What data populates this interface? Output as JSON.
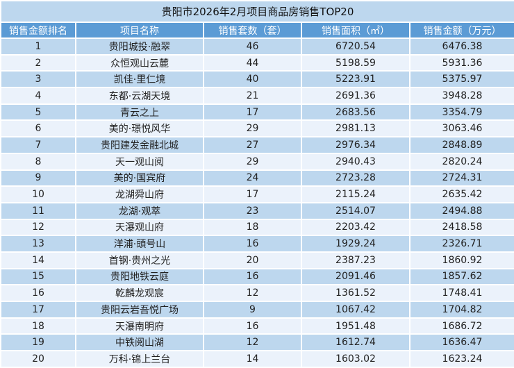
{
  "title": "贵阳市2026年2月项目商品房销售TOP20",
  "columns": [
    "销售金额排名",
    "项目名称",
    "销售套数（套）",
    "销售面积（㎡）",
    "销售金额（万元）"
  ],
  "rows": [
    [
      "1",
      "贵阳城投·融翠",
      "46",
      "6720.54",
      "6476.38"
    ],
    [
      "2",
      "众恒观山云麓",
      "44",
      "5198.59",
      "5931.36"
    ],
    [
      "3",
      "凯佳·里仁境",
      "40",
      "5223.91",
      "5375.97"
    ],
    [
      "4",
      "东都·云湖天境",
      "21",
      "2691.36",
      "3948.28"
    ],
    [
      "5",
      "青云之上",
      "17",
      "2683.56",
      "3354.79"
    ],
    [
      "6",
      "美的·璟悦风华",
      "29",
      "2981.13",
      "3063.46"
    ],
    [
      "7",
      "贵阳建发金融北城",
      "27",
      "2976.34",
      "2848.89"
    ],
    [
      "8",
      "天一观山阅",
      "29",
      "2940.43",
      "2820.24"
    ],
    [
      "9",
      "美的·国宾府",
      "24",
      "2723.28",
      "2724.31"
    ],
    [
      "10",
      "龙湖舜山府",
      "17",
      "2115.24",
      "2635.42"
    ],
    [
      "11",
      "龙湖·观萃",
      "23",
      "2514.07",
      "2494.88"
    ],
    [
      "12",
      "天瀑观山府",
      "18",
      "2203.42",
      "2418.58"
    ],
    [
      "13",
      "洋浦·頭号山",
      "16",
      "1929.24",
      "2326.71"
    ],
    [
      "14",
      "首钢·贵州之光",
      "20",
      "2387.23",
      "1860.92"
    ],
    [
      "15",
      "贵阳地铁云庭",
      "16",
      "2091.46",
      "1857.62"
    ],
    [
      "16",
      "乾麟龙观宸",
      "12",
      "1361.52",
      "1748.41"
    ],
    [
      "17",
      "贵阳云岩吾悦广场",
      "9",
      "1067.42",
      "1704.82"
    ],
    [
      "18",
      "天瀑南明府",
      "16",
      "1951.48",
      "1686.72"
    ],
    [
      "19",
      "中铁阅山湖",
      "12",
      "1612.74",
      "1636.47"
    ],
    [
      "20",
      "万科·锦上兰台",
      "14",
      "1603.02",
      "1623.24"
    ]
  ],
  "colors": {
    "header": "#5b9bd5",
    "row_odd": "#bdd7ee",
    "row_even": "#ebf2fb"
  }
}
